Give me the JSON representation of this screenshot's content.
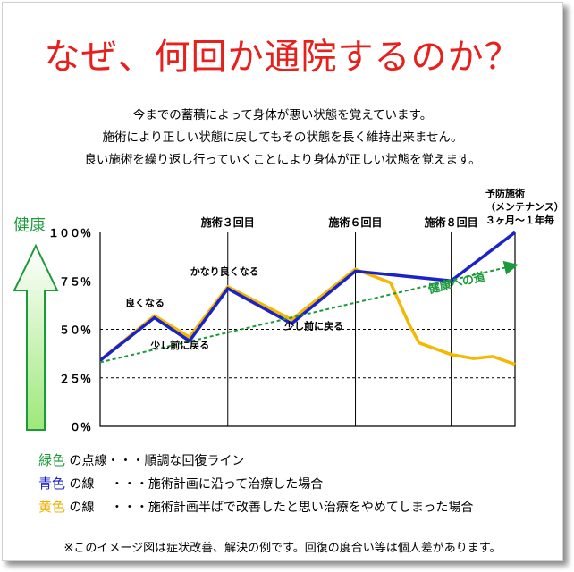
{
  "title": "なぜ、何回か通院するのか？",
  "intro_lines": [
    "今までの蓄積によって身体が悪い状態を覚えています。",
    "施術により正しい状態に戻してもその状態を長く維持出来ません。",
    "良い施術を繰り返し行っていくことにより身体が正しい状態を覚えます。"
  ],
  "colors": {
    "title": "#e8201c",
    "green": "#1a9a3a",
    "blue": "#1a22c8",
    "yellow": "#f5b800"
  },
  "chart_data": {
    "type": "line",
    "y_axis_title": "健康",
    "ylim": [
      0,
      100
    ],
    "y_tick_labels": [
      "１００％",
      "７５％",
      "５０％",
      "２５％",
      "０％"
    ],
    "y_ticks": [
      100,
      75,
      50,
      25,
      0
    ],
    "dashed_gridlines": [
      50,
      25
    ],
    "xlim": [
      0,
      13
    ],
    "section_markers": [
      {
        "x": 4,
        "label": "施術３回目"
      },
      {
        "x": 8,
        "label": "施術６回目"
      },
      {
        "x": 11,
        "label": "施術８回目"
      }
    ],
    "series": [
      {
        "name": "yellow",
        "values": [
          [
            0,
            34
          ],
          [
            1.7,
            57
          ],
          [
            2.8,
            46
          ],
          [
            4,
            72
          ],
          [
            6,
            55
          ],
          [
            8,
            81
          ],
          [
            9.1,
            74
          ],
          [
            9.7,
            52
          ],
          [
            10,
            43
          ],
          [
            11,
            37
          ],
          [
            11.7,
            35
          ],
          [
            12.3,
            36
          ],
          [
            13,
            32
          ]
        ]
      },
      {
        "name": "blue",
        "values": [
          [
            0,
            34
          ],
          [
            1.7,
            56
          ],
          [
            2.8,
            44
          ],
          [
            4,
            71
          ],
          [
            6,
            53
          ],
          [
            8,
            80
          ],
          [
            11,
            75
          ],
          [
            13,
            100
          ]
        ]
      },
      {
        "name": "green",
        "values": [
          [
            0,
            33
          ],
          [
            13,
            83
          ]
        ]
      }
    ],
    "annotations": [
      {
        "text": "良くなる",
        "x": 1.4,
        "y": 62
      },
      {
        "text": "少し前に戻る",
        "x": 2.5,
        "y": 40
      },
      {
        "text": "かなり良くなる",
        "x": 3.9,
        "y": 78
      },
      {
        "text": "少し前に戻る",
        "x": 6.7,
        "y": 50
      },
      {
        "text": "健康への道",
        "x": 11.2,
        "y": 72
      }
    ],
    "maintenance_label": [
      "予防施術",
      "（メンテナンス）",
      "３ヶ月～１年毎"
    ]
  },
  "legend": [
    {
      "color_word": "緑色",
      "rest": " の点線・・・順調な回復ライン"
    },
    {
      "color_word": "青色",
      "rest": " の線　 ・・・施術計画に沿って治療した場合"
    },
    {
      "color_word": "黄色",
      "rest": " の線　 ・・・施術計画半ばで改善したと思い治療をやめてしまった場合"
    }
  ],
  "footnote": "※このイメージ図は症状改善、解決の例です。回復の度合い等は個人差があります。"
}
